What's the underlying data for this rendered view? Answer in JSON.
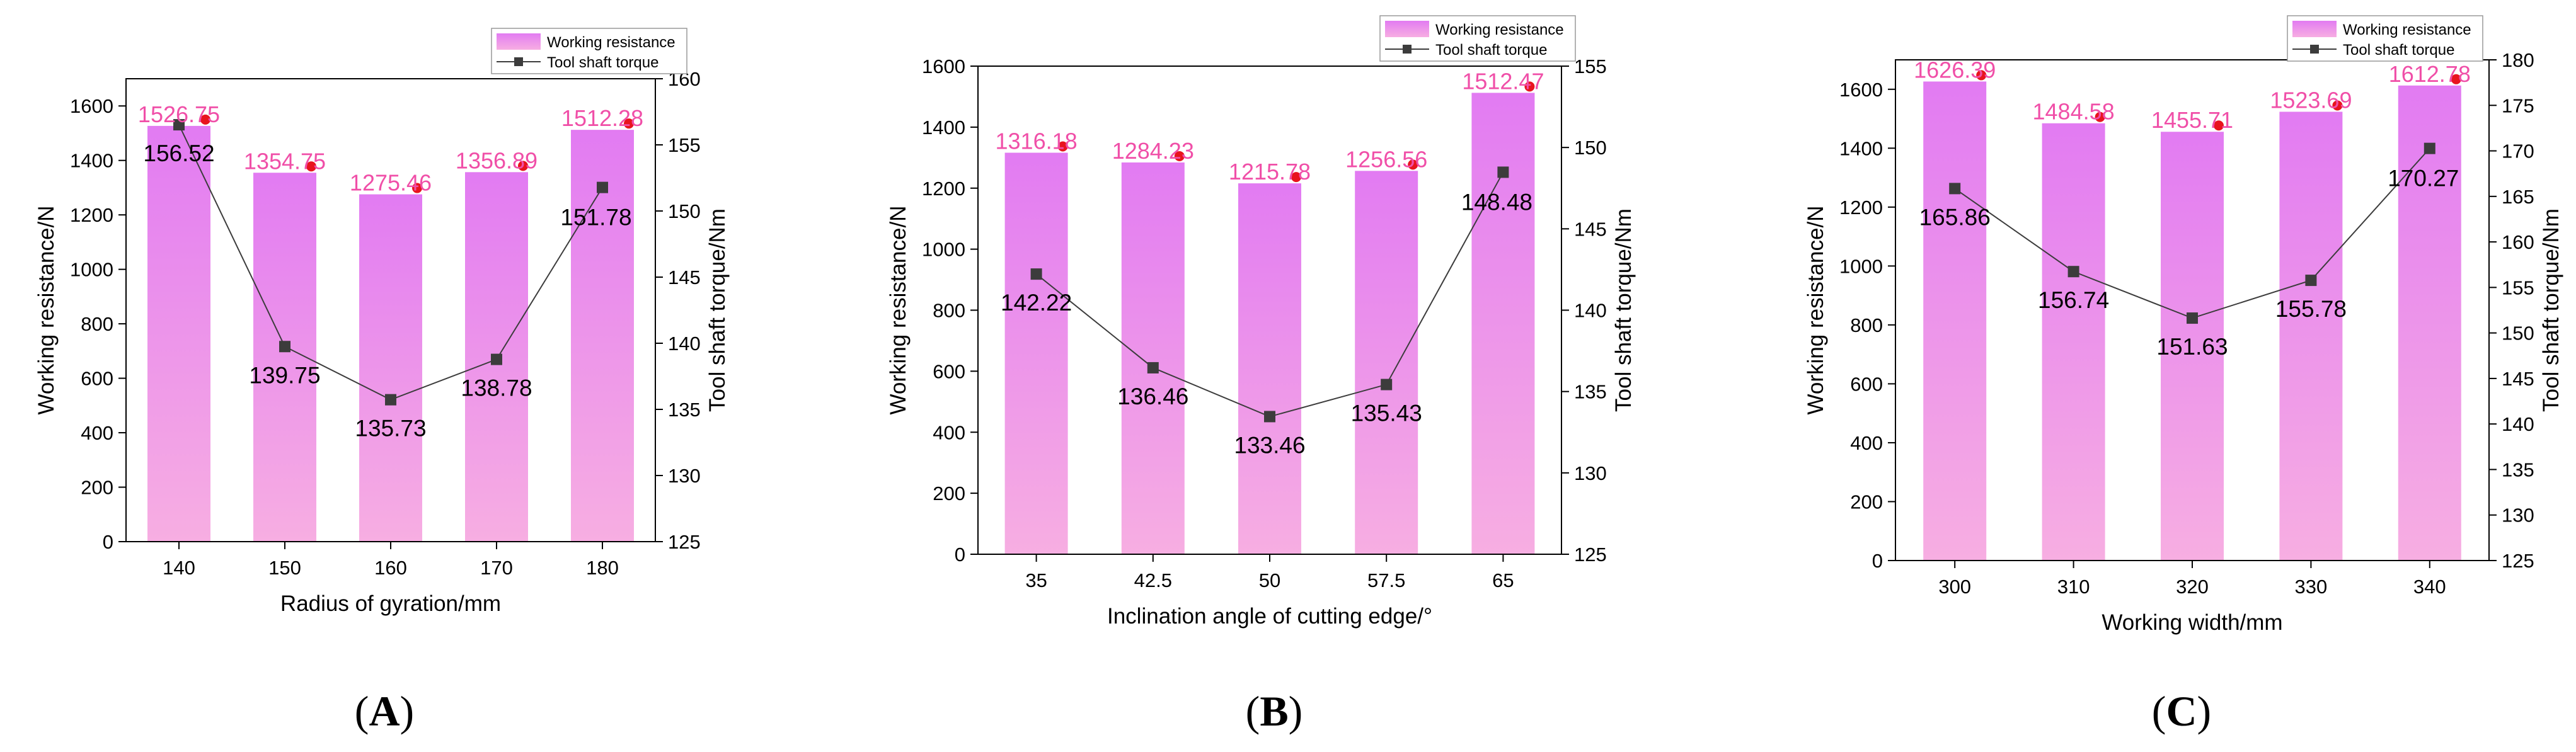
{
  "colors": {
    "bar_top": "#E27BF2",
    "bar_bottom": "#F7AEE2",
    "resistance_label": "#F04FA8",
    "marker_red": "#E8141E",
    "torque_line": "#3C3C3C",
    "axis": "#000000"
  },
  "chart_data": [
    {
      "type": "bar",
      "panel_label": "(A)",
      "panel_letter": "A",
      "xlabel": "Radius of gyration/mm",
      "ylabel": "Working resistance/N",
      "y2label": "Tool shaft torque/Nm",
      "categories": [
        "140",
        "150",
        "160",
        "170",
        "180"
      ],
      "ylim": [
        0,
        1700
      ],
      "yticks": [
        0,
        200,
        400,
        600,
        800,
        1000,
        1200,
        1400,
        1600
      ],
      "y2lim": [
        125,
        160
      ],
      "y2ticks": [
        125,
        130,
        135,
        140,
        145,
        150,
        155,
        160
      ],
      "legend": [
        "Working resistance",
        "Tool shaft torque"
      ],
      "series": [
        {
          "name": "Working resistance",
          "kind": "bar",
          "axis": "left",
          "values": [
            1526.75,
            1354.75,
            1275.46,
            1356.89,
            1512.28
          ],
          "labels": [
            "1526.75",
            "1354.75",
            "1275.46",
            "1356.89",
            "1512.28"
          ]
        },
        {
          "name": "Tool shaft torque",
          "kind": "line",
          "axis": "right",
          "values": [
            156.52,
            139.75,
            135.73,
            138.78,
            151.78
          ],
          "labels": [
            "156.52",
            "139.75",
            "135.73",
            "138.78",
            "151.78"
          ]
        }
      ]
    },
    {
      "type": "bar",
      "panel_label": "(B)",
      "panel_letter": "B",
      "xlabel": "Inclination angle of cutting edge/°",
      "ylabel": "Working resistance/N",
      "y2label": "Tool shaft torque/Nm",
      "categories": [
        "35",
        "42.5",
        "50",
        "57.5",
        "65"
      ],
      "ylim": [
        0,
        1600
      ],
      "yticks": [
        0,
        200,
        400,
        600,
        800,
        1000,
        1200,
        1400,
        1600
      ],
      "y2lim": [
        125,
        155
      ],
      "y2ticks": [
        125,
        130,
        135,
        140,
        145,
        150,
        155
      ],
      "legend": [
        "Working resistance",
        "Tool shaft torque"
      ],
      "series": [
        {
          "name": "Working resistance",
          "kind": "bar",
          "axis": "left",
          "values": [
            1316.18,
            1284.23,
            1215.78,
            1256.56,
            1512.47
          ],
          "labels": [
            "1316.18",
            "1284.23",
            "1215.78",
            "1256.56",
            "1512.47"
          ]
        },
        {
          "name": "Tool shaft torque",
          "kind": "line",
          "axis": "right",
          "values": [
            142.22,
            136.46,
            133.46,
            135.43,
            148.48
          ],
          "labels": [
            "142.22",
            "136.46",
            "133.46",
            "135.43",
            "148.48"
          ]
        }
      ]
    },
    {
      "type": "bar",
      "panel_label": "(C)",
      "panel_letter": "C",
      "xlabel": "Working width/mm",
      "ylabel": "Working resistance/N",
      "y2label": "Tool shaft torque/Nm",
      "categories": [
        "300",
        "310",
        "320",
        "330",
        "340"
      ],
      "ylim": [
        0,
        1700
      ],
      "yticks": [
        0,
        200,
        400,
        600,
        800,
        1000,
        1200,
        1400,
        1600
      ],
      "y2lim": [
        125,
        180
      ],
      "y2ticks": [
        125,
        130,
        135,
        140,
        145,
        150,
        155,
        160,
        165,
        170,
        175,
        180
      ],
      "legend": [
        "Working resistance",
        "Tool shaft torque"
      ],
      "series": [
        {
          "name": "Working resistance",
          "kind": "bar",
          "axis": "left",
          "values": [
            1626.39,
            1484.58,
            1455.71,
            1523.69,
            1612.78
          ],
          "labels": [
            "1626.39",
            "1484.58",
            "1455.71",
            "1523.69",
            "1612.78"
          ]
        },
        {
          "name": "Tool shaft torque",
          "kind": "line",
          "axis": "right",
          "values": [
            165.86,
            156.74,
            151.63,
            155.78,
            170.27
          ],
          "labels": [
            "165.86",
            "156.74",
            "151.63",
            "155.78",
            "170.27"
          ]
        }
      ]
    }
  ]
}
